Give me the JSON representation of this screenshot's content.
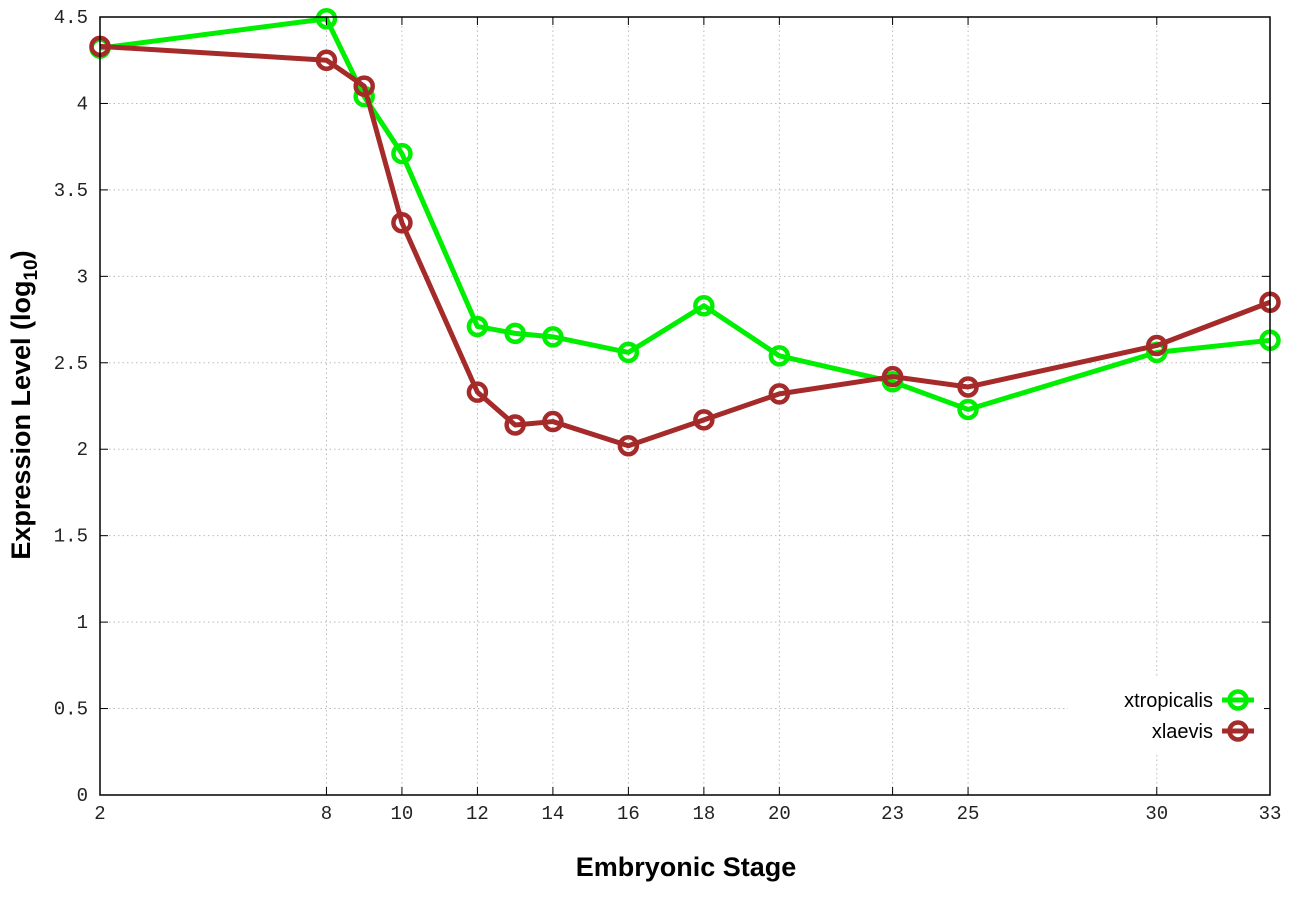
{
  "chart_data": {
    "type": "line",
    "title": "",
    "xlabel": "Embryonic Stage",
    "ylabel": "Expression Level (log",
    "ylabel_subscript": "10",
    "ylabel_close": ")",
    "xlim": [
      2,
      33
    ],
    "ylim": [
      0,
      4.5
    ],
    "x_ticks": [
      2,
      8,
      10,
      12,
      14,
      16,
      18,
      20,
      23,
      25,
      30,
      33
    ],
    "y_ticks": [
      0,
      0.5,
      1,
      1.5,
      2,
      2.5,
      3,
      3.5,
      4,
      4.5
    ],
    "y_tick_labels": [
      "0",
      "0.5",
      "1",
      "1.5",
      "2",
      "2.5",
      "3",
      "3.5",
      "4",
      "4.5"
    ],
    "grid": true,
    "legend_position": "bottom-right",
    "x": [
      2,
      8,
      9,
      10,
      12,
      13,
      14,
      16,
      18,
      20,
      23,
      25,
      30,
      33
    ],
    "series": [
      {
        "name": "xtropicalis",
        "color": "#00ee00",
        "values": [
          4.32,
          4.49,
          4.04,
          3.71,
          2.71,
          2.67,
          2.65,
          2.56,
          2.83,
          2.54,
          2.39,
          2.23,
          2.56,
          2.63
        ]
      },
      {
        "name": "xlaevis",
        "color": "#a52a2a",
        "values": [
          4.33,
          4.25,
          4.1,
          3.31,
          2.33,
          2.14,
          2.16,
          2.02,
          2.17,
          2.32,
          2.42,
          2.36,
          2.6,
          2.85
        ]
      }
    ]
  }
}
